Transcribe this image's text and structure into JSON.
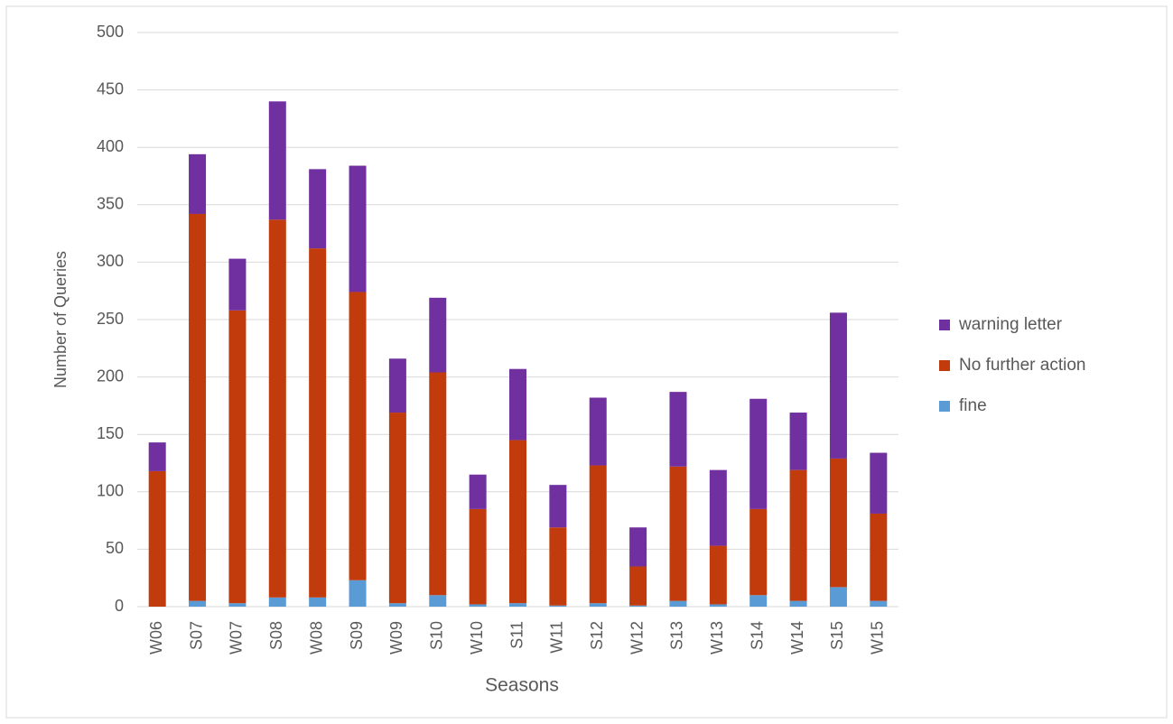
{
  "chart_data": {
    "type": "bar",
    "stacked": true,
    "y_label": "Number of Queries",
    "x_label": "Seasons",
    "categories": [
      "W06",
      "S07",
      "W07",
      "S08",
      "W08",
      "S09",
      "W09",
      "S10",
      "W10",
      "S11",
      "W11",
      "S12",
      "W12",
      "S13",
      "W13",
      "S14",
      "W14",
      "S15",
      "W15"
    ],
    "series": [
      {
        "name": "fine",
        "color": "#5b9bd5",
        "values": [
          0,
          5,
          3,
          8,
          8,
          23,
          3,
          10,
          2,
          3,
          1,
          3,
          1,
          5,
          2,
          10,
          5,
          17,
          5
        ]
      },
      {
        "name": "No further action",
        "color": "#c23b0c",
        "values": [
          118,
          337,
          255,
          329,
          304,
          251,
          166,
          194,
          83,
          142,
          68,
          120,
          34,
          117,
          51,
          75,
          114,
          112,
          76
        ]
      },
      {
        "name": "warning letter",
        "color": "#7030a0",
        "values": [
          25,
          52,
          45,
          103,
          69,
          110,
          47,
          65,
          30,
          62,
          37,
          59,
          34,
          65,
          66,
          96,
          50,
          127,
          53
        ]
      }
    ],
    "ylim": [
      0,
      500
    ],
    "yticks": [
      0,
      50,
      100,
      150,
      200,
      250,
      300,
      350,
      400,
      450,
      500
    ],
    "grid": true,
    "legend": "right"
  }
}
